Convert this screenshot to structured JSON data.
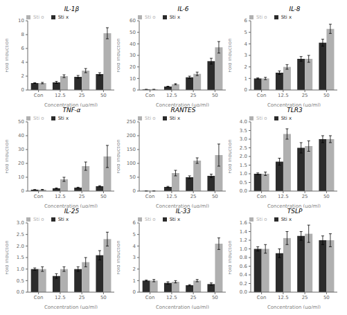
{
  "chart_data": [
    {
      "type": "bar",
      "title": "IL-1β",
      "categories": [
        "Con",
        "12.5",
        "25",
        "50"
      ],
      "xlabel": "Concentration (μg/ml)",
      "ylabel": "Fold Induction",
      "ylim": [
        0,
        10
      ],
      "yticks": [
        0,
        2,
        4,
        6,
        8,
        10
      ],
      "grid": false,
      "legend": "upper left",
      "series": [
        {
          "name": "Sti x",
          "color": "#2b2b2b",
          "values": [
            1.0,
            1.1,
            1.9,
            2.3
          ],
          "error": [
            0.05,
            0.15,
            0.2,
            0.2
          ]
        },
        {
          "name": "Sti o",
          "color": "#b0b0b0",
          "values": [
            1.0,
            2.0,
            2.8,
            8.2
          ],
          "error": [
            0.1,
            0.2,
            0.3,
            0.8
          ]
        }
      ]
    },
    {
      "type": "bar",
      "title": "IL-6",
      "categories": [
        "Con",
        "12.5",
        "25",
        "50"
      ],
      "xlabel": "Concentration (μg/ml)",
      "ylabel": "Fold Induction",
      "ylim": [
        0,
        60
      ],
      "yticks": [
        0,
        10,
        20,
        30,
        40,
        50,
        60
      ],
      "grid": false,
      "legend": "upper left",
      "series": [
        {
          "name": "Sti x",
          "color": "#2b2b2b",
          "values": [
            0.5,
            3.0,
            11.0,
            25.0
          ],
          "error": [
            0.1,
            0.3,
            1.0,
            2.5
          ]
        },
        {
          "name": "Sti o",
          "color": "#b0b0b0",
          "values": [
            0.5,
            5.0,
            14.0,
            37.0
          ],
          "error": [
            0.1,
            0.5,
            1.5,
            5.0
          ]
        }
      ]
    },
    {
      "type": "bar",
      "title": "IL-8",
      "categories": [
        "Con",
        "12.5",
        "25",
        "50"
      ],
      "xlabel": "Concentration (μg/ml)",
      "ylabel": "Fold Induction",
      "ylim": [
        0,
        6
      ],
      "yticks": [
        0,
        1,
        2,
        3,
        4,
        5,
        6
      ],
      "grid": false,
      "legend": "upper left",
      "series": [
        {
          "name": "Sti x",
          "color": "#2b2b2b",
          "values": [
            1.0,
            1.5,
            2.7,
            4.1
          ],
          "error": [
            0.05,
            0.15,
            0.2,
            0.3
          ]
        },
        {
          "name": "Sti o",
          "color": "#b0b0b0",
          "values": [
            1.0,
            2.0,
            2.7,
            5.3
          ],
          "error": [
            0.1,
            0.2,
            0.3,
            0.4
          ]
        }
      ]
    },
    {
      "type": "bar",
      "title": "TNF-α",
      "categories": [
        "Con",
        "12.5",
        "25",
        "50"
      ],
      "xlabel": "Concentration (μg/ml)",
      "ylabel": "Fold Induction",
      "ylim": [
        0,
        50
      ],
      "yticks": [
        0,
        10,
        20,
        30,
        40,
        50
      ],
      "grid": false,
      "legend": "upper left",
      "series": [
        {
          "name": "Sti x",
          "color": "#2b2b2b",
          "values": [
            1.0,
            2.0,
            2.5,
            3.5
          ],
          "error": [
            0.1,
            0.3,
            0.3,
            0.4
          ]
        },
        {
          "name": "Sti o",
          "color": "#b0b0b0",
          "values": [
            1.0,
            8.5,
            18.0,
            25.0
          ],
          "error": [
            0.2,
            1.5,
            3.0,
            8.0
          ]
        }
      ]
    },
    {
      "type": "bar",
      "title": "RANTES",
      "categories": [
        "Con",
        "12.5",
        "25",
        "50"
      ],
      "xlabel": "Concentration (μg/ml)",
      "ylabel": "Fold Induction",
      "ylim": [
        0,
        250
      ],
      "yticks": [
        0,
        50,
        100,
        150,
        200,
        250
      ],
      "grid": false,
      "legend": "upper left",
      "series": [
        {
          "name": "Sti x",
          "color": "#2b2b2b",
          "values": [
            0.5,
            15.0,
            50.0,
            55.0
          ],
          "error": [
            0.1,
            2.0,
            5.0,
            6.0
          ]
        },
        {
          "name": "Sti o",
          "color": "#b0b0b0",
          "values": [
            0.5,
            65.0,
            110.0,
            130.0
          ],
          "error": [
            0.1,
            10.0,
            10.0,
            40.0
          ]
        }
      ]
    },
    {
      "type": "bar",
      "title": "TLR3",
      "categories": [
        "Con",
        "12.5",
        "25",
        "50"
      ],
      "xlabel": "Concentration (μg/ml)",
      "ylabel": "Fold Induction",
      "ylim": [
        0,
        4
      ],
      "yticks": [
        {
          "value": 0,
          "label": "0.0"
        },
        0.5,
        {
          "value": 1,
          "label": "1.0"
        },
        1.5,
        {
          "value": 2,
          "label": "2.0"
        },
        2.5,
        {
          "value": 3,
          "label": "3.0"
        },
        3.5,
        {
          "value": 4,
          "label": "4.0"
        }
      ],
      "grid": false,
      "legend": "upper left",
      "series": [
        {
          "name": "Sti x",
          "color": "#2b2b2b",
          "values": [
            1.0,
            1.7,
            2.5,
            3.0
          ],
          "error": [
            0.05,
            0.2,
            0.3,
            0.2
          ]
        },
        {
          "name": "Sti o",
          "color": "#b0b0b0",
          "values": [
            1.0,
            3.3,
            2.6,
            3.0
          ],
          "error": [
            0.1,
            0.3,
            0.3,
            0.2
          ]
        }
      ]
    },
    {
      "type": "bar",
      "title": "IL-25",
      "categories": [
        "Con",
        "12.5",
        "25",
        "50"
      ],
      "xlabel": "Concentration (μg/ml)",
      "ylabel": "Fold Induction",
      "ylim": [
        0,
        3
      ],
      "yticks": [
        {
          "value": 0,
          "label": "0.0"
        },
        0.5,
        {
          "value": 1,
          "label": "1.0"
        },
        1.5,
        {
          "value": 2,
          "label": "2.0"
        },
        2.5,
        {
          "value": 3,
          "label": "3.0"
        }
      ],
      "grid": false,
      "legend": "upper left",
      "series": [
        {
          "name": "Sti x",
          "color": "#2b2b2b",
          "values": [
            1.0,
            0.7,
            1.0,
            1.6
          ],
          "error": [
            0.05,
            0.1,
            0.1,
            0.2
          ]
        },
        {
          "name": "Sti o",
          "color": "#b0b0b0",
          "values": [
            1.0,
            1.0,
            1.3,
            2.3
          ],
          "error": [
            0.1,
            0.1,
            0.2,
            0.3
          ]
        }
      ]
    },
    {
      "type": "bar",
      "title": "IL-33",
      "categories": [
        "Con",
        "12.5",
        "25",
        "50"
      ],
      "xlabel": "Concentration (μg/ml)",
      "ylabel": "Fold Induction",
      "ylim": [
        0,
        6
      ],
      "yticks": [
        0,
        1,
        2,
        3,
        4,
        5,
        6
      ],
      "grid": false,
      "legend": "upper left",
      "series": [
        {
          "name": "Sti x",
          "color": "#2b2b2b",
          "values": [
            1.0,
            0.8,
            0.6,
            0.7
          ],
          "error": [
            0.05,
            0.1,
            0.05,
            0.1
          ]
        },
        {
          "name": "Sti o",
          "color": "#b0b0b0",
          "values": [
            1.0,
            0.9,
            1.0,
            4.2
          ],
          "error": [
            0.1,
            0.1,
            0.1,
            0.5
          ]
        }
      ]
    },
    {
      "type": "bar",
      "title": "TSLP",
      "categories": [
        "Con",
        "12.5",
        "25",
        "50"
      ],
      "xlabel": "Concentration (μg/ml)",
      "ylabel": "Fold Induction",
      "ylim": [
        0,
        1.6
      ],
      "yticks": [
        {
          "value": 0,
          "label": "0.0"
        },
        0.2,
        0.4,
        0.6,
        0.8,
        {
          "value": 1,
          "label": "1.0"
        },
        1.2,
        1.4,
        1.6
      ],
      "grid": false,
      "legend": "upper left",
      "series": [
        {
          "name": "Sti x",
          "color": "#2b2b2b",
          "values": [
            1.0,
            0.9,
            1.3,
            1.2
          ],
          "error": [
            0.05,
            0.1,
            0.1,
            0.1
          ]
        },
        {
          "name": "Sti o",
          "color": "#b0b0b0",
          "values": [
            1.0,
            1.25,
            1.35,
            1.2
          ],
          "error": [
            0.1,
            0.15,
            0.2,
            0.15
          ]
        }
      ]
    }
  ]
}
